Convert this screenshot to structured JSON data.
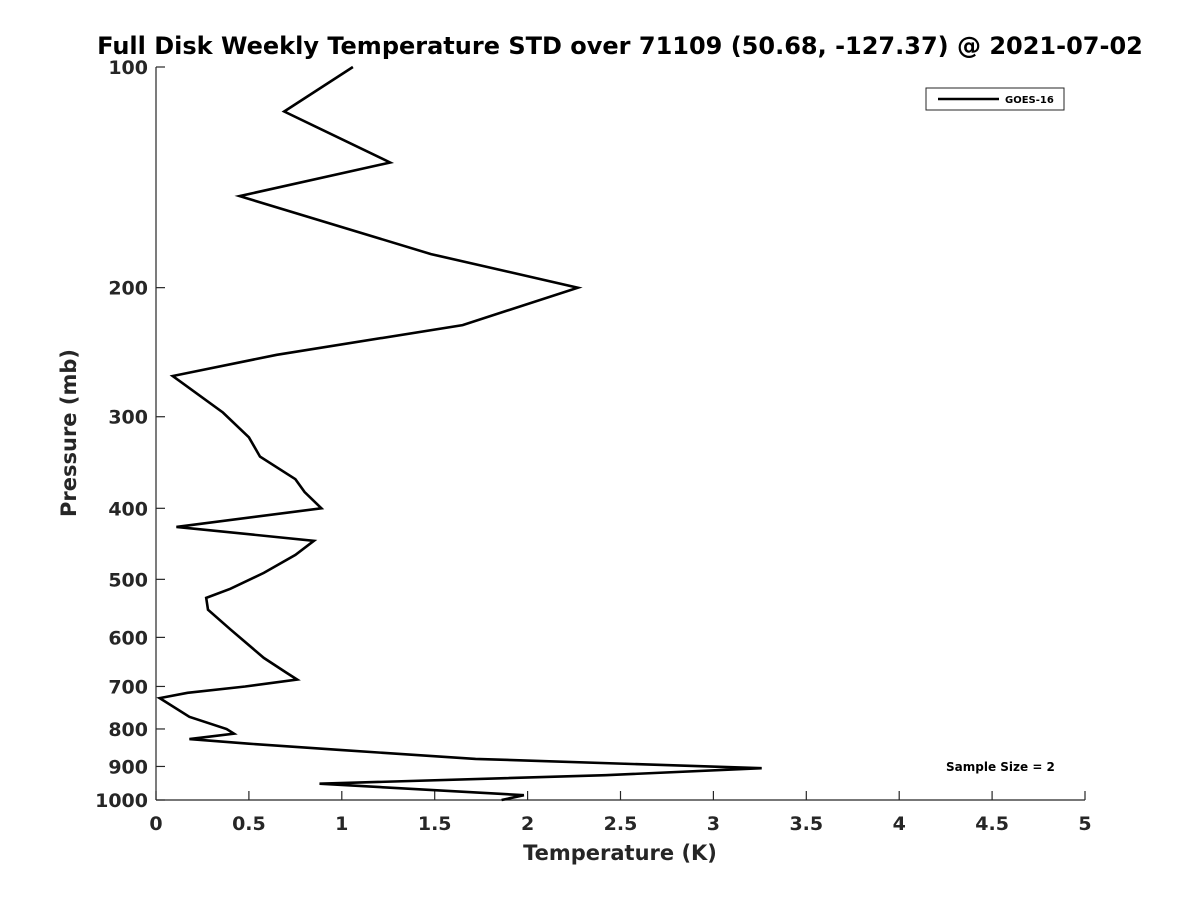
{
  "chart_data": {
    "type": "line",
    "title": "Full Disk Weekly Temperature STD over 71109 (50.68, -127.37) @ 2021-07-02",
    "xlabel": "Temperature (K)",
    "ylabel": "Pressure (mb)",
    "xlim": [
      0,
      5
    ],
    "ylim": [
      100,
      1000
    ],
    "y_scale": "log",
    "y_reversed": true,
    "grid": false,
    "x_ticks": [
      "0",
      "0.5",
      "1",
      "1.5",
      "2",
      "2.5",
      "3",
      "3.5",
      "4",
      "4.5",
      "5"
    ],
    "y_ticks": [
      "100",
      "200",
      "300",
      "400",
      "500",
      "600",
      "700",
      "800",
      "900",
      "1000"
    ],
    "legend_position": "top-right",
    "series": [
      {
        "name": "GOES-16",
        "color": "#000000",
        "points": [
          [
            1.06,
            100
          ],
          [
            0.69,
            115
          ],
          [
            1.26,
            135
          ],
          [
            0.45,
            150
          ],
          [
            1.48,
            180
          ],
          [
            2.27,
            200
          ],
          [
            1.65,
            225
          ],
          [
            0.65,
            247
          ],
          [
            0.09,
            264
          ],
          [
            0.36,
            296
          ],
          [
            0.5,
            320
          ],
          [
            0.56,
            340
          ],
          [
            0.75,
            365
          ],
          [
            0.8,
            380
          ],
          [
            0.89,
            400
          ],
          [
            0.11,
            424
          ],
          [
            0.85,
            443
          ],
          [
            0.75,
            463
          ],
          [
            0.58,
            490
          ],
          [
            0.4,
            515
          ],
          [
            0.27,
            530
          ],
          [
            0.28,
            550
          ],
          [
            0.4,
            585
          ],
          [
            0.58,
            640
          ],
          [
            0.7,
            670
          ],
          [
            0.76,
            685
          ],
          [
            0.48,
            700
          ],
          [
            0.17,
            714
          ],
          [
            0.02,
            726
          ],
          [
            0.18,
            770
          ],
          [
            0.38,
            800
          ],
          [
            0.42,
            812
          ],
          [
            0.18,
            826
          ],
          [
            0.5,
            838
          ],
          [
            1.0,
            855
          ],
          [
            1.72,
            879
          ],
          [
            3.26,
            905
          ],
          [
            2.42,
            925
          ],
          [
            0.88,
            950
          ],
          [
            1.98,
            985
          ],
          [
            1.86,
            1000
          ]
        ]
      }
    ],
    "annotations": [
      "Sample Size = 2"
    ]
  }
}
